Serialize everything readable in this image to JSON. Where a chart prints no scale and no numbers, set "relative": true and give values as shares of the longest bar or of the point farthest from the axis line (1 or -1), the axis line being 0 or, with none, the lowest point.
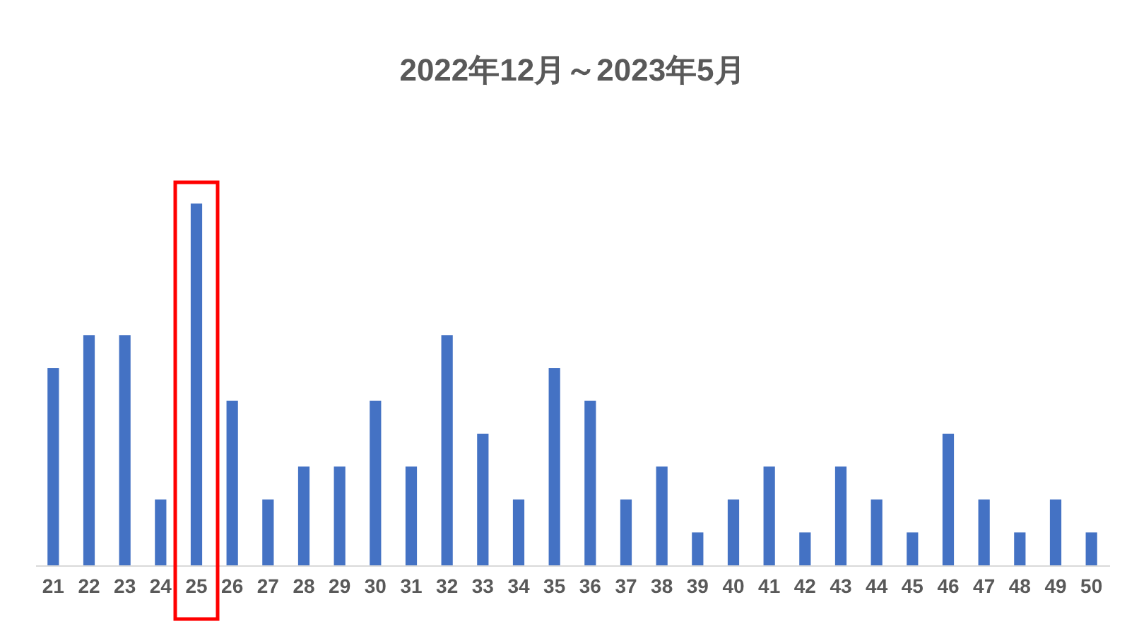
{
  "chart_data": {
    "type": "bar",
    "title": "2022年12月～2023年5月",
    "relative": true,
    "categories": [
      "21",
      "22",
      "23",
      "24",
      "25",
      "26",
      "27",
      "28",
      "29",
      "30",
      "31",
      "32",
      "33",
      "34",
      "35",
      "36",
      "37",
      "38",
      "39",
      "40",
      "41",
      "42",
      "43",
      "44",
      "45",
      "46",
      "47",
      "48",
      "49",
      "50"
    ],
    "values": [
      0.545,
      0.636,
      0.636,
      0.182,
      1,
      0.455,
      0.182,
      0.273,
      0.273,
      0.455,
      0.273,
      0.636,
      0.364,
      0.182,
      0.545,
      0.455,
      0.182,
      0.273,
      0.091,
      0.182,
      0.273,
      0.091,
      0.273,
      0.182,
      0.091,
      0.364,
      0.182,
      0.091,
      0.182,
      0.091
    ],
    "color": "#4472c4",
    "grid": false
  }
}
